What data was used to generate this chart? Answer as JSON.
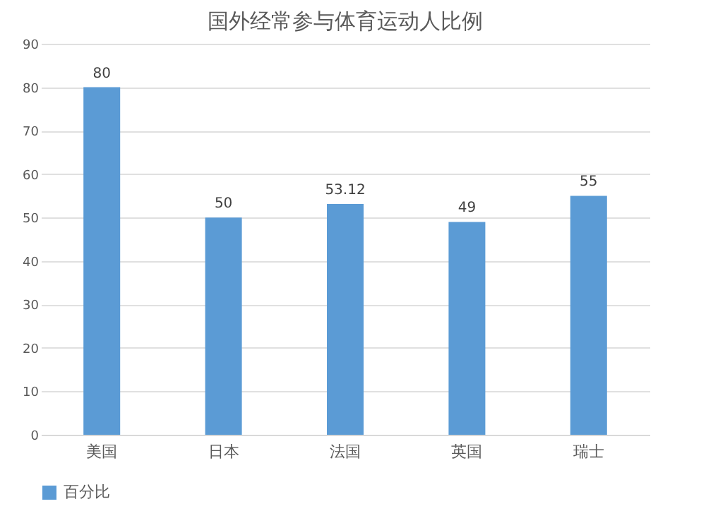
{
  "chart_data": {
    "type": "bar",
    "title": "国外经常参与体育运动人比例",
    "categories": [
      "美国",
      "日本",
      "法国",
      "英国",
      "瑞士"
    ],
    "series": [
      {
        "name": "百分比",
        "color": "#5b9bd5",
        "values": [
          80,
          50,
          53.12,
          49,
          55
        ]
      }
    ],
    "ylim": [
      0,
      90
    ],
    "yticks": [
      0,
      10,
      20,
      30,
      40,
      50,
      60,
      70,
      80,
      90
    ],
    "grid": "y",
    "legend": "bottom",
    "data_labels": true
  }
}
